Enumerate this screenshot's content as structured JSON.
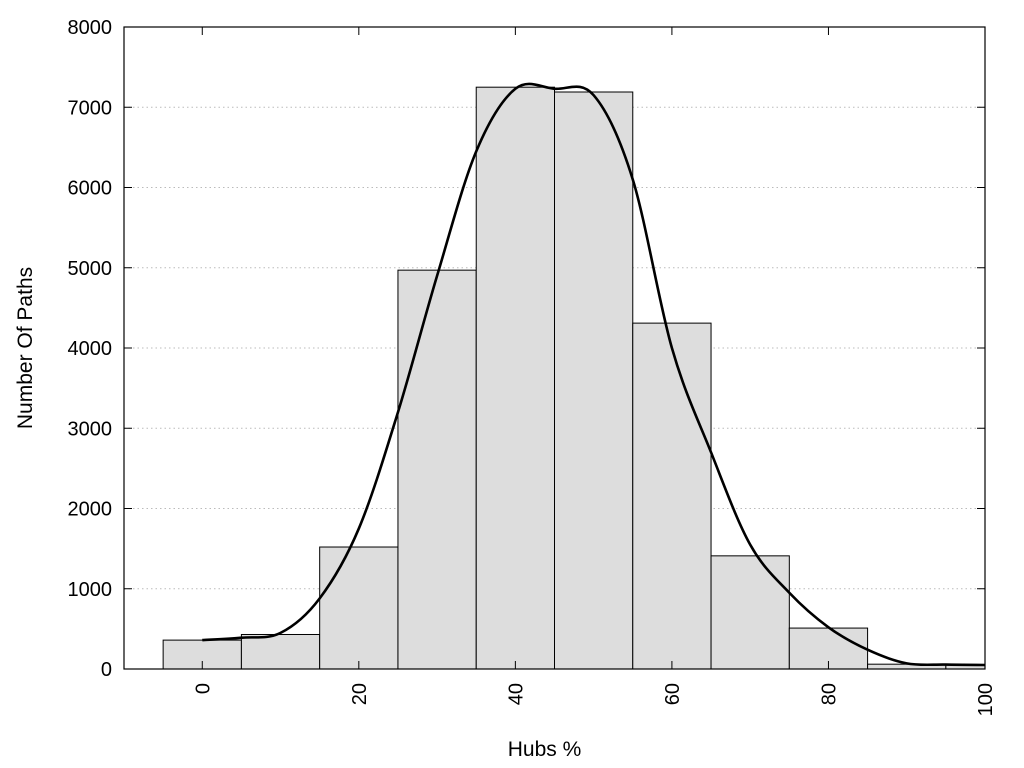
{
  "chart_data": {
    "type": "bar",
    "title": "",
    "xlabel": "Hubs %",
    "ylabel": "Number Of Paths",
    "xlim": [
      -10,
      100
    ],
    "ylim": [
      0,
      8000
    ],
    "x_ticks": [
      0,
      20,
      40,
      60,
      80,
      100
    ],
    "y_ticks": [
      0,
      1000,
      2000,
      3000,
      4000,
      5000,
      6000,
      7000,
      8000
    ],
    "grid": "horizontal dotted",
    "colors": {
      "bar_fill": "#dddddd",
      "bar_stroke": "#000000",
      "curve": "#000000",
      "grid": "#bbbbbb"
    },
    "bins": [
      {
        "x0": -5,
        "x1": 5,
        "value": 360
      },
      {
        "x0": 5,
        "x1": 15,
        "value": 430
      },
      {
        "x0": 15,
        "x1": 25,
        "value": 1520
      },
      {
        "x0": 25,
        "x1": 35,
        "value": 4970
      },
      {
        "x0": 35,
        "x1": 45,
        "value": 7250
      },
      {
        "x0": 45,
        "x1": 55,
        "value": 7190
      },
      {
        "x0": 55,
        "x1": 65,
        "value": 4310
      },
      {
        "x0": 65,
        "x1": 75,
        "value": 1410
      },
      {
        "x0": 75,
        "x1": 85,
        "value": 510
      },
      {
        "x0": 85,
        "x1": 95,
        "value": 60
      },
      {
        "x0": 95,
        "x1": 100,
        "value": 50
      }
    ],
    "curve": {
      "x": [
        0,
        5,
        10,
        15,
        20,
        25,
        30,
        35,
        40,
        45,
        50,
        55,
        60,
        65,
        70,
        75,
        80,
        85,
        90,
        95,
        100
      ],
      "y": [
        360,
        390,
        450,
        880,
        1750,
        3200,
        4900,
        6450,
        7230,
        7230,
        7150,
        6100,
        4000,
        2700,
        1550,
        950,
        520,
        240,
        70,
        55,
        50
      ]
    }
  }
}
